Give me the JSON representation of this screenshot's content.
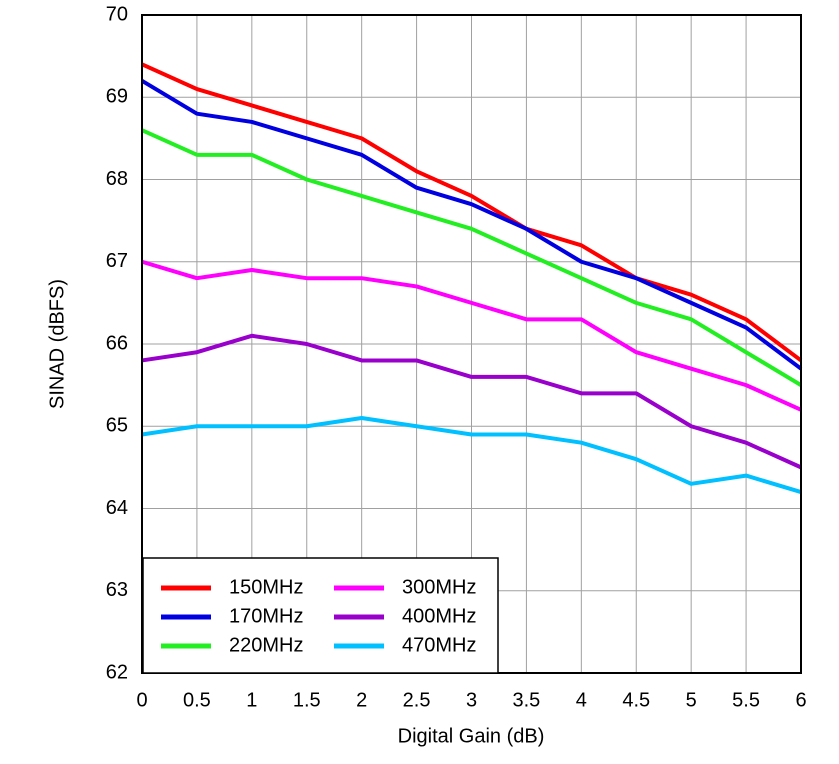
{
  "chart_data": {
    "type": "line",
    "x_label": "Digital Gain (dB)",
    "y_label": "SINAD (dBFS)",
    "x": [
      0,
      0.5,
      1,
      1.5,
      2,
      2.5,
      3,
      3.5,
      4,
      4.5,
      5,
      5.5,
      6
    ],
    "series": [
      {
        "name": "150MHz",
        "color": "#ff0000",
        "values": [
          69.4,
          69.1,
          68.9,
          68.7,
          68.5,
          68.1,
          67.8,
          67.4,
          67.2,
          66.8,
          66.6,
          66.3,
          65.8
        ]
      },
      {
        "name": "170MHz",
        "color": "#0000e0",
        "values": [
          69.2,
          68.8,
          68.7,
          68.5,
          68.3,
          67.9,
          67.7,
          67.4,
          67.0,
          66.8,
          66.5,
          66.2,
          65.7
        ]
      },
      {
        "name": "220MHz",
        "color": "#22ee22",
        "values": [
          68.6,
          68.3,
          68.3,
          68.0,
          67.8,
          67.6,
          67.4,
          67.1,
          66.8,
          66.5,
          66.3,
          65.9,
          65.5
        ]
      },
      {
        "name": "300MHz",
        "color": "#ff00ff",
        "values": [
          67.0,
          66.8,
          66.9,
          66.8,
          66.8,
          66.7,
          66.5,
          66.3,
          66.3,
          65.9,
          65.7,
          65.5,
          65.2
        ]
      },
      {
        "name": "400MHz",
        "color": "#9900cc",
        "values": [
          65.8,
          65.9,
          66.1,
          66.0,
          65.8,
          65.8,
          65.6,
          65.6,
          65.4,
          65.4,
          65.0,
          64.8,
          64.5
        ]
      },
      {
        "name": "470MHz",
        "color": "#00c0ff",
        "values": [
          64.9,
          65.0,
          65.0,
          65.0,
          65.1,
          65.0,
          64.9,
          64.9,
          64.8,
          64.6,
          64.3,
          64.4,
          64.2
        ]
      }
    ],
    "xlim": [
      0,
      6
    ],
    "xticks": [
      0,
      0.5,
      1,
      1.5,
      2,
      2.5,
      3,
      3.5,
      4,
      4.5,
      5,
      5.5,
      6
    ],
    "ylim": [
      62,
      70
    ],
    "yticks": [
      62,
      63,
      64,
      65,
      66,
      67,
      68,
      69,
      70
    ],
    "grid": true,
    "legend": "lower left"
  }
}
